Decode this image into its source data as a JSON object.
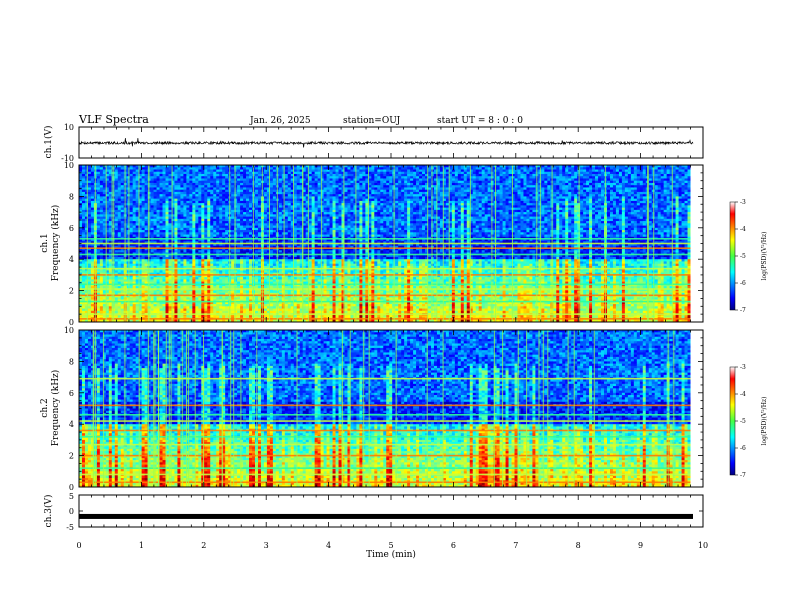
{
  "header": {
    "title": "VLF Spectra",
    "date": "Jan. 26, 2025",
    "station": "station=OUJ",
    "start": "start  UT =  8 : 0  : 0"
  },
  "chart_data": [
    {
      "type": "line",
      "panel": "ch1-waveform",
      "ylabel": "ch.1(V)",
      "ylim": [
        -10,
        10
      ],
      "yticks": [
        10,
        -10
      ],
      "xlim": [
        0,
        10
      ],
      "series_color": "#000000",
      "baseline": -0.3
    },
    {
      "type": "heatmap",
      "panel": "ch1-spectrogram",
      "ylabel_line1": "ch.1",
      "ylabel_line2": "Frequency (kHz)",
      "ylim": [
        0,
        10
      ],
      "yticks": [
        0,
        2,
        4,
        6,
        8,
        10
      ],
      "xlim": [
        0,
        9.8
      ],
      "colorbar": {
        "label": "log(PSD)(V²/Hz)",
        "range": [
          -7,
          -3
        ],
        "ticks": [
          -3,
          -4,
          -5,
          -6,
          -7
        ]
      },
      "bands_khz": [
        0.2,
        0.5,
        1.3,
        1.7,
        2.1,
        2.4,
        3.0,
        3.4,
        4.3,
        4.7,
        5.0,
        5.3
      ],
      "seed": 11
    },
    {
      "type": "heatmap",
      "panel": "ch2-spectrogram",
      "ylabel_line1": "ch.2",
      "ylabel_line2": "Frequency (kHz)",
      "ylim": [
        0,
        10
      ],
      "yticks": [
        0,
        2,
        4,
        6,
        8,
        10
      ],
      "xlim": [
        0,
        9.8
      ],
      "colorbar": {
        "label": "log(PSD)(V²/Hz)",
        "range": [
          -7,
          -3
        ],
        "ticks": [
          -3,
          -4,
          -5,
          -6,
          -7
        ]
      },
      "bands_khz": [
        0.3,
        0.8,
        1.2,
        2.0,
        2.7,
        3.2,
        3.6,
        4.2,
        4.6,
        5.2,
        6.9
      ],
      "seed": 29
    },
    {
      "type": "line",
      "panel": "ch3-waveform",
      "ylabel": "ch.3(V)",
      "ylim": [
        -5,
        5
      ],
      "yticks": [
        5,
        0,
        -5
      ],
      "xlim": [
        0,
        10
      ],
      "series_color": "#000000",
      "baseline": -1.7
    }
  ],
  "xaxis": {
    "label": "Time (min)",
    "range": [
      0,
      10
    ],
    "ticks": [
      "0",
      "1",
      "2",
      "3",
      "4",
      "5",
      "6",
      "7",
      "8",
      "9",
      "10"
    ]
  }
}
